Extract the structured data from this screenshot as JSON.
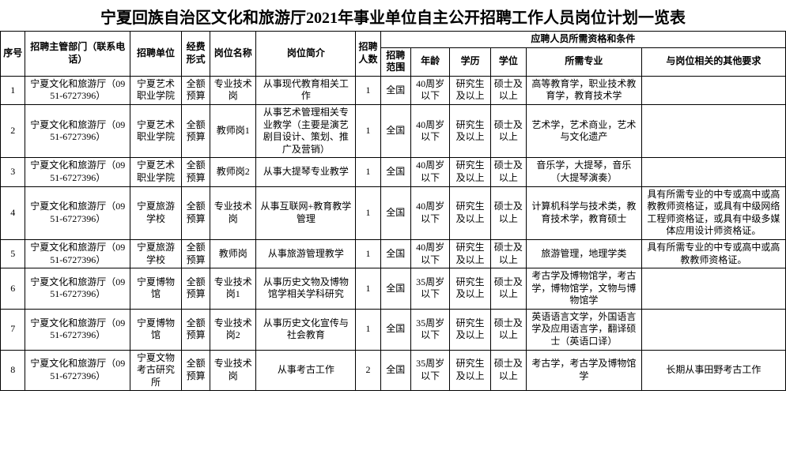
{
  "title": "宁夏回族自治区文化和旅游厅2021年事业单位自主公开招聘工作人员岗位计划一览表",
  "title_fontsize": "20px",
  "header_fontsize": "12px",
  "cell_fontsize": "12px",
  "border_color": "#000000",
  "background_color": "#ffffff",
  "columns": {
    "seq": "序号",
    "dept": "招聘主管部门（联系电话）",
    "unit": "招聘单位",
    "budget": "经费形式",
    "posname": "岗位名称",
    "desc": "岗位简介",
    "count": "招聘人数",
    "qual_group": "应聘人员所需资格和条件",
    "scope": "招聘范围",
    "age": "年龄",
    "edu": "学历",
    "degree": "学位",
    "major": "所需专业",
    "other": "与岗位相关的其他要求"
  },
  "rows": [
    {
      "seq": "1",
      "dept": "宁夏文化和旅游厅（0951-6727396）",
      "unit": "宁夏艺术职业学院",
      "budget": "全额预算",
      "posname": "专业技术岗",
      "desc": "从事现代教育相关工作",
      "count": "1",
      "scope": "全国",
      "age": "40周岁以下",
      "edu": "研究生及以上",
      "degree": "硕士及以上",
      "major": "高等教育学，职业技术教育学，教育技术学",
      "other": ""
    },
    {
      "seq": "2",
      "dept": "宁夏文化和旅游厅（0951-6727396）",
      "unit": "宁夏艺术职业学院",
      "budget": "全额预算",
      "posname": "教师岗1",
      "desc": "从事艺术管理相关专业教学（主要是演艺剧目设计、策划、推广及营销）",
      "count": "1",
      "scope": "全国",
      "age": "40周岁以下",
      "edu": "研究生及以上",
      "degree": "硕士及以上",
      "major": "艺术学，艺术商业，艺术与文化遗产",
      "other": ""
    },
    {
      "seq": "3",
      "dept": "宁夏文化和旅游厅（0951-6727396）",
      "unit": "宁夏艺术职业学院",
      "budget": "全额预算",
      "posname": "教师岗2",
      "desc": "从事大提琴专业教学",
      "count": "1",
      "scope": "全国",
      "age": "40周岁以下",
      "edu": "研究生及以上",
      "degree": "硕士及以上",
      "major": "音乐学，大提琴，音乐（大提琴演奏）",
      "other": ""
    },
    {
      "seq": "4",
      "dept": "宁夏文化和旅游厅（0951-6727396）",
      "unit": "宁夏旅游学校",
      "budget": "全额预算",
      "posname": "专业技术岗",
      "desc": "从事互联网+教育教学管理",
      "count": "1",
      "scope": "全国",
      "age": "40周岁以下",
      "edu": "研究生及以上",
      "degree": "硕士及以上",
      "major": "计算机科学与技术类，教育技术学，教育硕士",
      "other": "具有所需专业的中专或高中或高教教师资格证，或具有中级网络工程师资格证，或具有中级多媒体应用设计师资格证。"
    },
    {
      "seq": "5",
      "dept": "宁夏文化和旅游厅（0951-6727396）",
      "unit": "宁夏旅游学校",
      "budget": "全额预算",
      "posname": "教师岗",
      "desc": "从事旅游管理教学",
      "count": "1",
      "scope": "全国",
      "age": "40周岁以下",
      "edu": "研究生及以上",
      "degree": "硕士及以上",
      "major": "旅游管理，地理学类",
      "other": "具有所需专业的中专或高中或高教教师资格证。"
    },
    {
      "seq": "6",
      "dept": "宁夏文化和旅游厅（0951-6727396）",
      "unit": "宁夏博物馆",
      "budget": "全额预算",
      "posname": "专业技术岗1",
      "desc": "从事历史文物及博物馆学相关学科研究",
      "count": "1",
      "scope": "全国",
      "age": "35周岁以下",
      "edu": "研究生及以上",
      "degree": "硕士及以上",
      "major": "考古学及博物馆学，考古学，博物馆学，文物与博物馆学",
      "other": ""
    },
    {
      "seq": "7",
      "dept": "宁夏文化和旅游厅（0951-6727396）",
      "unit": "宁夏博物馆",
      "budget": "全额预算",
      "posname": "专业技术岗2",
      "desc": "从事历史文化宣传与社会教育",
      "count": "1",
      "scope": "全国",
      "age": "35周岁以下",
      "edu": "研究生及以上",
      "degree": "硕士及以上",
      "major": "英语语言文学，外国语言学及应用语言学，翻译硕士（英语口译）",
      "other": ""
    },
    {
      "seq": "8",
      "dept": "宁夏文化和旅游厅（0951-6727396）",
      "unit": "宁夏文物考古研究所",
      "budget": "全额预算",
      "posname": "专业技术岗",
      "desc": "从事考古工作",
      "count": "2",
      "scope": "全国",
      "age": "35周岁以下",
      "edu": "研究生及以上",
      "degree": "硕士及以上",
      "major": "考古学，考古学及博物馆学",
      "other": "长期从事田野考古工作"
    }
  ]
}
